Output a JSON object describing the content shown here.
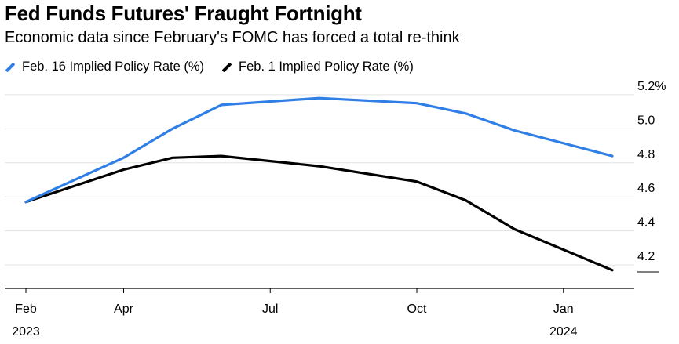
{
  "chart_data": {
    "type": "line",
    "title": "Fed Funds Futures' Fraught Fortnight",
    "subtitle": "Economic data since February's FOMC has forced a total re-think",
    "x": [
      "2023-02",
      "2023-03",
      "2023-04",
      "2023-05",
      "2023-06",
      "2023-07",
      "2023-08",
      "2023-09",
      "2023-10",
      "2023-11",
      "2023-12",
      "2024-01",
      "2024-02"
    ],
    "series": [
      {
        "name": "Feb. 16 Implied Policy Rate (%)",
        "color": "#2f7fe6",
        "values": [
          4.57,
          null,
          4.83,
          5.0,
          5.14,
          null,
          5.18,
          null,
          5.15,
          5.09,
          4.99,
          null,
          4.84
        ]
      },
      {
        "name": "Feb. 1 Implied Policy Rate (%)",
        "color": "#000000",
        "values": [
          4.57,
          null,
          4.76,
          4.83,
          4.84,
          null,
          4.78,
          null,
          4.69,
          4.58,
          4.41,
          null,
          4.17
        ]
      }
    ],
    "x_ticks": [
      {
        "value": "2023-02",
        "label": "Feb",
        "year": "2023"
      },
      {
        "value": "2023-04",
        "label": "Apr",
        "year": ""
      },
      {
        "value": "2023-07",
        "label": "Jul",
        "year": ""
      },
      {
        "value": "2023-10",
        "label": "Oct",
        "year": ""
      },
      {
        "value": "2024-01",
        "label": "Jan",
        "year": "2024"
      }
    ],
    "y_ticks": [
      {
        "value": 5.2,
        "label": "5.2%"
      },
      {
        "value": 5.0,
        "label": "5.0"
      },
      {
        "value": 4.8,
        "label": "4.8"
      },
      {
        "value": 4.6,
        "label": "4.6"
      },
      {
        "value": 4.4,
        "label": "4.4"
      },
      {
        "value": 4.2,
        "label": "4.2"
      }
    ],
    "ylim": [
      4.15,
      5.25
    ],
    "grid": true,
    "legend_position": "top-left"
  }
}
